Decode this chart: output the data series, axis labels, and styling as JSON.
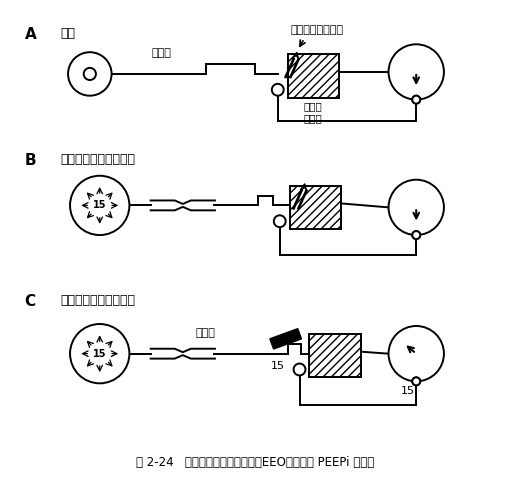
{
  "title": "图 2-24   阐述以呼气末气道闭合（EEO）法测定 PEEPi 示意图",
  "panel_A_label": "A",
  "panel_B_label": "B",
  "panel_C_label": "C",
  "panel_A_title": "正常",
  "panel_B_title": "严重阻塞，呼气孔开放",
  "panel_C_title": "严重阻塞，呼气孔闭合",
  "label_no_flow_A": "无气流",
  "label_no_flow_C": "无气流",
  "label_exhale_open": "呼气孔开放到大气",
  "label_ventilator": "通气机\n压力计",
  "label_15_B": "15",
  "label_15_C1": "15",
  "label_15_C2": "15",
  "bg_color": "#ffffff",
  "fg_color": "#000000",
  "figsize": [
    5.11,
    4.8
  ],
  "dpi": 100
}
